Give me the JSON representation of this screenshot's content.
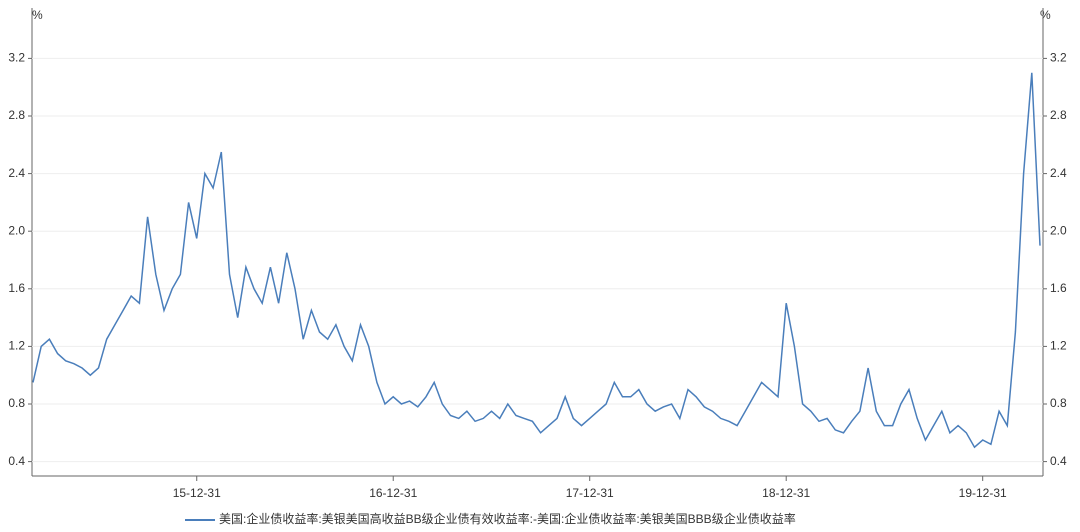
{
  "chart_data": {
    "type": "line",
    "y_unit": "%",
    "y2_unit": "%",
    "categories": [
      null,
      null,
      null,
      null,
      null,
      null,
      null,
      null,
      null,
      null,
      null,
      null,
      null,
      null,
      null,
      null,
      null,
      null,
      null,
      null,
      "15-12-31",
      null,
      null,
      null,
      null,
      null,
      null,
      null,
      null,
      null,
      null,
      null,
      null,
      null,
      null,
      null,
      null,
      null,
      null,
      null,
      null,
      null,
      null,
      null,
      "16-12-31",
      null,
      null,
      null,
      null,
      null,
      null,
      null,
      null,
      null,
      null,
      null,
      null,
      null,
      null,
      null,
      null,
      null,
      null,
      null,
      null,
      null,
      null,
      null,
      "17-12-31",
      null,
      null,
      null,
      null,
      null,
      null,
      null,
      null,
      null,
      null,
      null,
      null,
      null,
      null,
      null,
      null,
      null,
      null,
      null,
      null,
      null,
      null,
      null,
      "18-12-31",
      null,
      null,
      null,
      null,
      null,
      null,
      null,
      null,
      null,
      null,
      null,
      null,
      null,
      null,
      null,
      null,
      null,
      null,
      null,
      null,
      null,
      null,
      null,
      "19-12-31",
      null,
      null,
      null,
      null,
      null,
      null,
      null
    ],
    "series": [
      {
        "name": "美国:企业债收益率:美银美国高收益BB级企业债有效收益率:-美国:企业债收益率:美银美国BBB级企业债收益率",
        "color": "#4a7ebb",
        "values": [
          0.95,
          1.2,
          1.25,
          1.15,
          1.1,
          1.08,
          1.05,
          1.0,
          1.05,
          1.25,
          1.35,
          1.45,
          1.55,
          1.5,
          2.1,
          1.7,
          1.45,
          1.6,
          1.7,
          2.2,
          1.95,
          2.4,
          2.3,
          2.55,
          1.7,
          1.4,
          1.75,
          1.6,
          1.5,
          1.75,
          1.5,
          1.85,
          1.6,
          1.25,
          1.45,
          1.3,
          1.25,
          1.35,
          1.2,
          1.1,
          1.35,
          1.2,
          0.95,
          0.8,
          0.85,
          0.8,
          0.82,
          0.78,
          0.85,
          0.95,
          0.8,
          0.72,
          0.7,
          0.75,
          0.68,
          0.7,
          0.75,
          0.7,
          0.8,
          0.72,
          0.7,
          0.68,
          0.6,
          0.65,
          0.7,
          0.85,
          0.7,
          0.65,
          0.7,
          0.75,
          0.8,
          0.95,
          0.85,
          0.85,
          0.9,
          0.8,
          0.75,
          0.78,
          0.8,
          0.7,
          0.9,
          0.85,
          0.78,
          0.75,
          0.7,
          0.68,
          0.65,
          0.75,
          0.85,
          0.95,
          0.9,
          0.85,
          1.5,
          1.2,
          0.8,
          0.75,
          0.68,
          0.7,
          0.62,
          0.6,
          0.68,
          0.75,
          1.05,
          0.75,
          0.65,
          0.65,
          0.8,
          0.9,
          0.7,
          0.55,
          0.65,
          0.75,
          0.6,
          0.65,
          0.6,
          0.5,
          0.55,
          0.52,
          0.75,
          0.65,
          1.3,
          2.4,
          3.1,
          1.9
        ]
      }
    ],
    "ylim": [
      0.3,
      3.55
    ],
    "yticks": [
      0.4,
      0.8,
      1.2,
      1.6,
      {
        "value": 2,
        "label": "2.0"
      },
      2.4,
      2.8,
      3.2
    ],
    "y2lim": [
      0.3,
      3.55
    ],
    "y2ticks": [
      0.4,
      0.8,
      1.2,
      1.6,
      {
        "value": 2,
        "label": "2.0"
      },
      2.4,
      2.8,
      3.2
    ],
    "grid": true
  }
}
